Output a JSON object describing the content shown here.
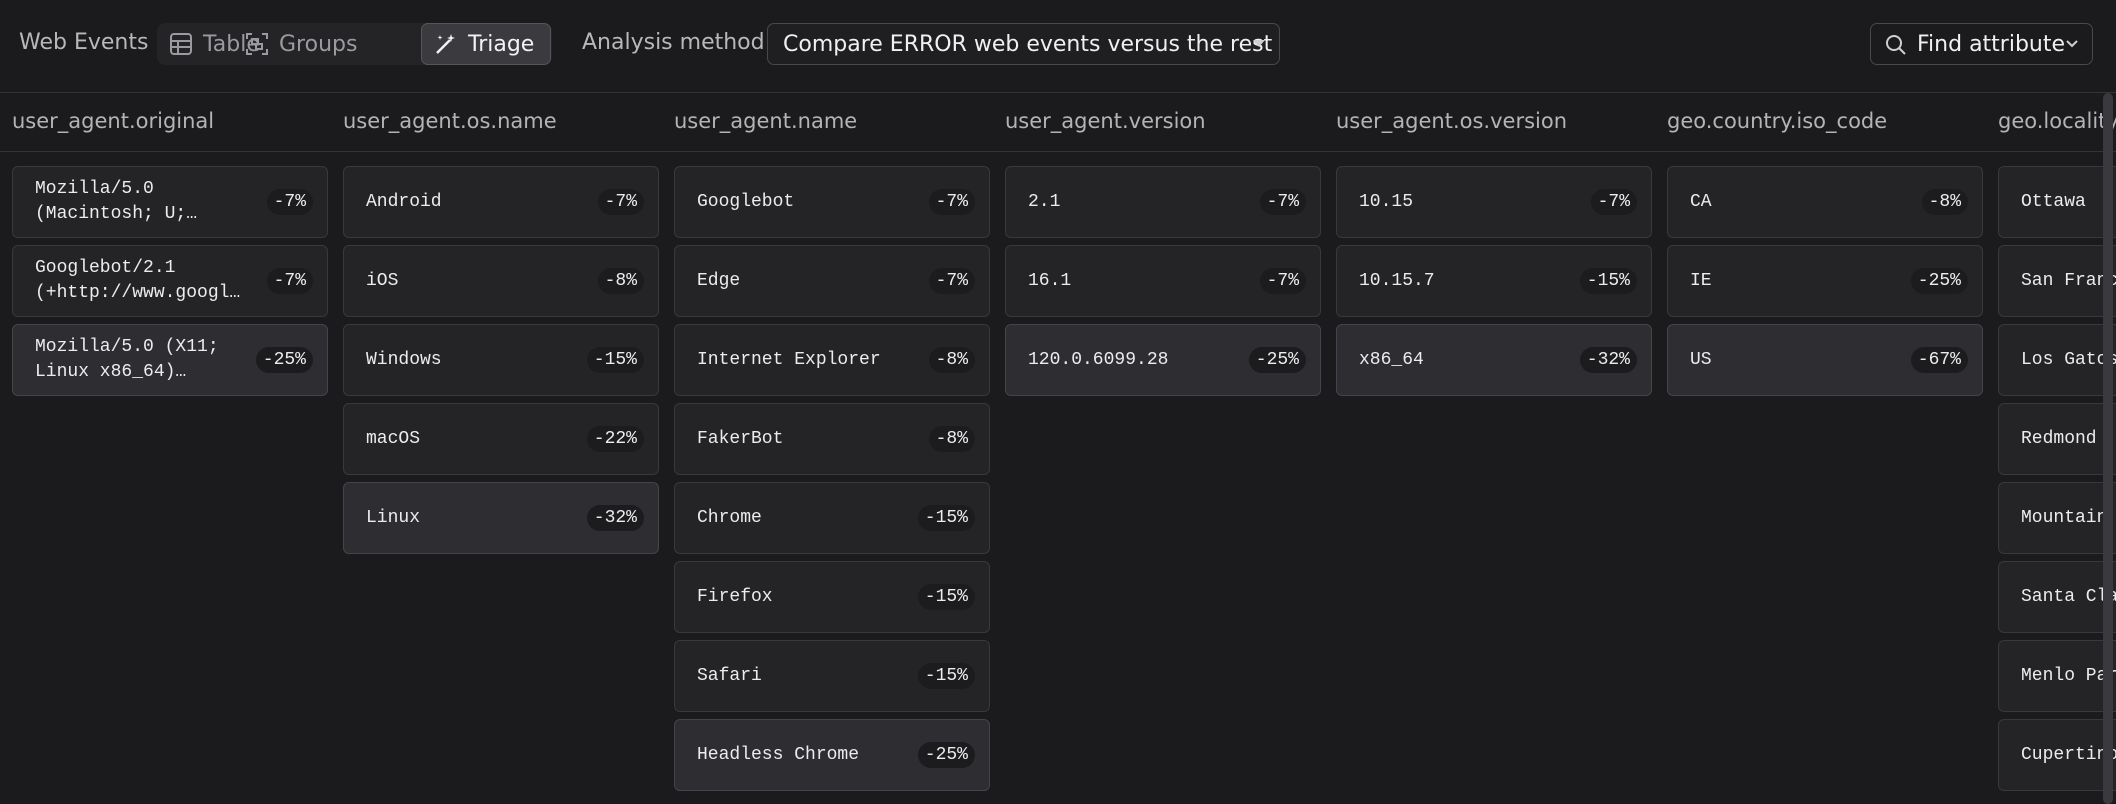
{
  "toolbar": {
    "title": "Web Events",
    "tabs": [
      "Table",
      "Groups",
      "Triage"
    ],
    "active_tab": 2,
    "analysis_label": "Analysis method",
    "analysis_value": "Compare ERROR web events versus the rest",
    "search": "Find attribute"
  },
  "columns": [
    {
      "name": "user_agent.original",
      "items": [
        {
          "label": "Mozilla/5.0 (Macintosh; U;…",
          "value": "-7%"
        },
        {
          "label": "Googlebot/2.1 (+http://www.googl…",
          "value": "-7%"
        },
        {
          "label": "Mozilla/5.0 (X11; Linux x86_64)…",
          "value": "-25%"
        }
      ]
    },
    {
      "name": "user_agent.os.name",
      "items": [
        {
          "label": "Android",
          "value": "-7%"
        },
        {
          "label": "iOS",
          "value": "-8%"
        },
        {
          "label": "Windows",
          "value": "-15%"
        },
        {
          "label": "macOS",
          "value": "-22%"
        },
        {
          "label": "Linux",
          "value": "-32%"
        }
      ]
    },
    {
      "name": "user_agent.name",
      "items": [
        {
          "label": "Googlebot",
          "value": "-7%"
        },
        {
          "label": "Edge",
          "value": "-7%"
        },
        {
          "label": "Internet Explorer",
          "value": "-8%"
        },
        {
          "label": "FakerBot",
          "value": "-8%"
        },
        {
          "label": "Chrome",
          "value": "-15%"
        },
        {
          "label": "Firefox",
          "value": "-15%"
        },
        {
          "label": "Safari",
          "value": "-15%"
        },
        {
          "label": "Headless Chrome",
          "value": "-25%"
        }
      ]
    },
    {
      "name": "user_agent.version",
      "items": [
        {
          "label": "2.1",
          "value": "-7%"
        },
        {
          "label": "16.1",
          "value": "-7%"
        },
        {
          "label": "120.0.6099.28",
          "value": "-25%"
        }
      ]
    },
    {
      "name": "user_agent.os.version",
      "items": [
        {
          "label": "10.15",
          "value": "-7%"
        },
        {
          "label": "10.15.7",
          "value": "-15%"
        },
        {
          "label": "x86_64",
          "value": "-32%"
        }
      ]
    },
    {
      "name": "geo.country.iso_code",
      "items": [
        {
          "label": "CA",
          "value": "-8%"
        },
        {
          "label": "IE",
          "value": "-25%"
        },
        {
          "label": "US",
          "value": "-67%"
        }
      ]
    },
    {
      "name": "geo.locality",
      "items": [
        {
          "label": "Ottawa"
        },
        {
          "label": "San Franc"
        },
        {
          "label": "Los Gatos"
        },
        {
          "label": "Redmond"
        },
        {
          "label": "Mountain"
        },
        {
          "label": "Santa Cla"
        },
        {
          "label": "Menlo Par"
        },
        {
          "label": "Cupertino"
        }
      ]
    }
  ]
}
